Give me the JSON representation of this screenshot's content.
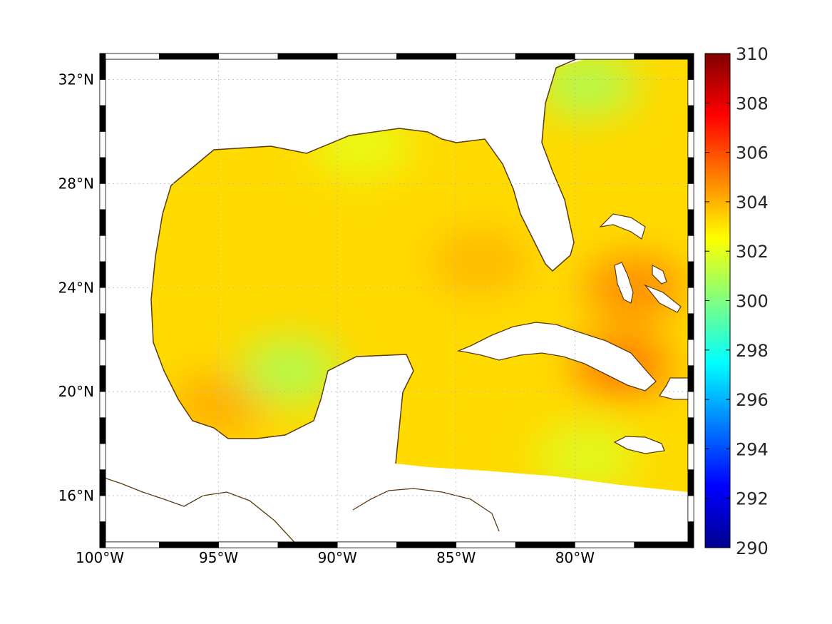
{
  "map": {
    "lon_range": [
      -100,
      -75
    ],
    "lat_range": [
      14,
      33
    ],
    "lon_ticks": [
      {
        "value": -100,
        "label": "100°W"
      },
      {
        "value": -95,
        "label": "95°W"
      },
      {
        "value": -90,
        "label": "90°W"
      },
      {
        "value": -85,
        "label": "85°W"
      },
      {
        "value": -80,
        "label": "80°W"
      }
    ],
    "lat_ticks": [
      {
        "value": 16,
        "label": "16°N"
      },
      {
        "value": 20,
        "label": "20°N"
      },
      {
        "value": 24,
        "label": "24°N"
      },
      {
        "value": 28,
        "label": "28°N"
      },
      {
        "value": 32,
        "label": "32°N"
      }
    ],
    "grid": true,
    "coastline_color": "#5a3a10",
    "land_color": "#ffffff"
  },
  "colorbar": {
    "colormap": "jet",
    "min": 290,
    "max": 310,
    "ticks": [
      {
        "value": 290,
        "label": "290"
      },
      {
        "value": 292,
        "label": "292"
      },
      {
        "value": 294,
        "label": "294"
      },
      {
        "value": 296,
        "label": "296"
      },
      {
        "value": 298,
        "label": "298"
      },
      {
        "value": 300,
        "label": "300"
      },
      {
        "value": 302,
        "label": "302"
      },
      {
        "value": 304,
        "label": "304"
      },
      {
        "value": 306,
        "label": "306"
      },
      {
        "value": 308,
        "label": "308"
      },
      {
        "value": 310,
        "label": "310"
      }
    ]
  },
  "field": {
    "base_value": 303.2,
    "features": [
      {
        "lon": -84,
        "lat": 25,
        "value": 304.0
      },
      {
        "lon": -95,
        "lat": 19.5,
        "value": 304.2
      },
      {
        "lon": -78,
        "lat": 21,
        "value": 305.3
      },
      {
        "lon": -77.5,
        "lat": 24,
        "value": 305.0
      },
      {
        "lon": -92,
        "lat": 20.8,
        "value": 300.8
      },
      {
        "lon": -79.5,
        "lat": 31.8,
        "value": 300.8
      },
      {
        "lon": -79.5,
        "lat": 17.5,
        "value": 301.8
      },
      {
        "lon": -89,
        "lat": 29.5,
        "value": 302.0
      }
    ]
  }
}
